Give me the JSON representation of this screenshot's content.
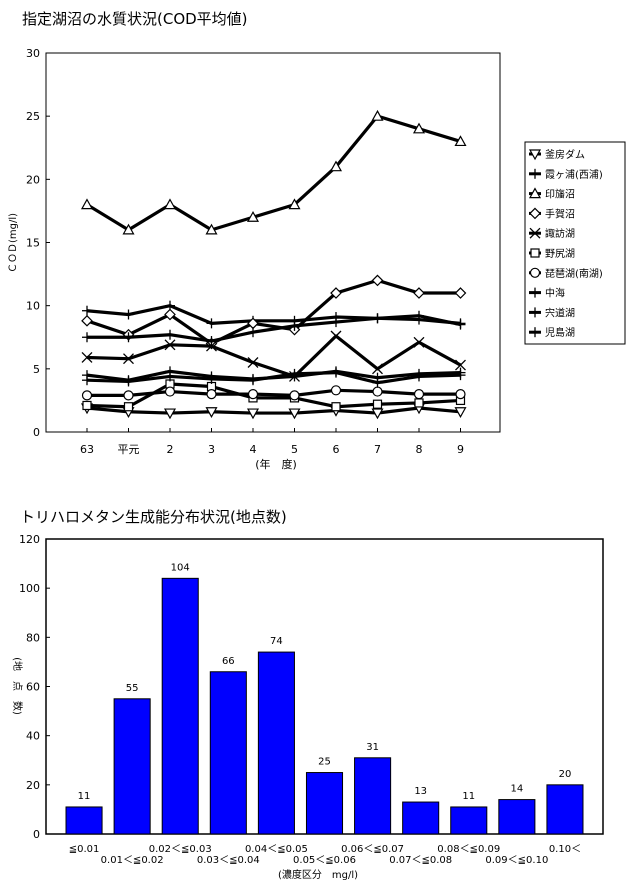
{
  "chart_data": [
    {
      "type": "line",
      "title": "指定湖沼の水質状況(COD平均値)",
      "ylabel": "ＣＯＤ(mg/l)",
      "xlabel": "(年　度)",
      "categories": [
        "63",
        "平元",
        "2",
        "3",
        "4",
        "5",
        "6",
        "7",
        "8",
        "9"
      ],
      "ylim": [
        0,
        30
      ],
      "yticks": [
        0,
        5,
        10,
        15,
        20,
        25,
        30
      ],
      "grid": false,
      "legend": "right",
      "series": [
        {
          "name": "釜房ダム",
          "marker": "triangle-down",
          "values": [
            1.9,
            1.6,
            1.5,
            1.6,
            1.5,
            1.5,
            1.7,
            1.5,
            1.9,
            1.6
          ]
        },
        {
          "name": "霞ヶ浦(西浦)",
          "marker": "cross",
          "values": [
            9.6,
            9.3,
            10.0,
            8.6,
            8.8,
            8.8,
            9.1,
            9.0,
            8.9,
            8.6
          ]
        },
        {
          "name": "印旛沼",
          "marker": "triangle",
          "values": [
            18.0,
            16.0,
            18.0,
            16.0,
            17.0,
            18.0,
            21.0,
            25.0,
            24.0,
            23.0
          ]
        },
        {
          "name": "手賀沼",
          "marker": "diamond",
          "values": [
            8.8,
            7.7,
            9.3,
            7.0,
            8.6,
            8.1,
            11.0,
            12.0,
            11.0,
            11.0
          ]
        },
        {
          "name": "諏訪湖",
          "marker": "x",
          "values": [
            5.9,
            5.8,
            6.9,
            6.8,
            5.5,
            4.4,
            7.6,
            5.0,
            7.1,
            5.3
          ]
        },
        {
          "name": "野尻湖",
          "marker": "square",
          "values": [
            2.1,
            2.0,
            3.8,
            3.6,
            2.7,
            2.7,
            2.0,
            2.2,
            2.3,
            2.5
          ]
        },
        {
          "name": "琵琶湖(南湖)",
          "marker": "circle",
          "values": [
            2.9,
            2.9,
            3.2,
            3.0,
            3.0,
            2.9,
            3.3,
            3.2,
            3.0,
            3.0
          ]
        },
        {
          "name": "中海",
          "marker": "cross",
          "values": [
            4.5,
            4.1,
            4.8,
            4.4,
            4.2,
            4.4,
            4.8,
            4.3,
            4.6,
            4.7
          ]
        },
        {
          "name": "宍道湖",
          "marker": "cross",
          "values": [
            4.1,
            4.0,
            4.4,
            4.2,
            4.1,
            4.6,
            4.7,
            3.9,
            4.4,
            4.5
          ]
        },
        {
          "name": "児島湖",
          "marker": "plus",
          "values": [
            7.5,
            7.5,
            7.7,
            7.2,
            7.9,
            8.4,
            8.7,
            9.0,
            9.2,
            8.5
          ]
        }
      ]
    },
    {
      "type": "bar",
      "title": "トリハロメタン生成能分布状況(地点数)",
      "ylabel": "(地　点　数)",
      "xlabel": "(濃度区分　mg/l)",
      "categories": [
        "≦0.01",
        "0.01＜≦0.02",
        "0.02＜≦0.03",
        "0.03＜≦0.04",
        "0.04＜≦0.05",
        "0.05＜≦0.06",
        "0.06＜≦0.07",
        "0.07＜≦0.08",
        "0.08＜≦0.09",
        "0.09＜≦0.10",
        "0.10＜"
      ],
      "values": [
        11,
        55,
        104,
        66,
        74,
        25,
        31,
        13,
        11,
        14,
        20
      ],
      "ylim": [
        0,
        120
      ],
      "yticks": [
        0,
        20,
        40,
        60,
        80,
        100,
        120
      ],
      "bar_color": "#0000ff",
      "grid": false
    }
  ]
}
